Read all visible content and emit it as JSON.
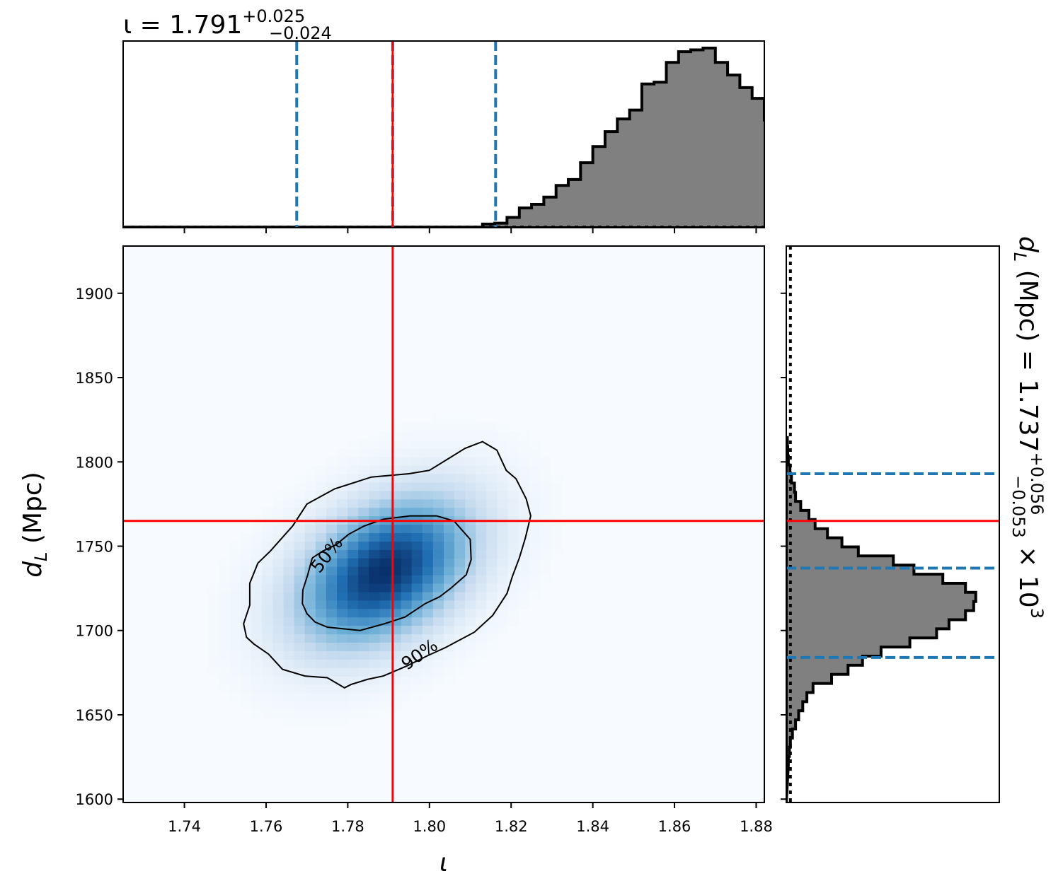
{
  "chart_data": [
    {
      "panel": "top-marginal",
      "type": "histogram",
      "title": {
        "prefix": "ι = ",
        "value": "1.791",
        "plus": "+0.025",
        "minus": "−0.024"
      },
      "xlim": [
        1.725,
        1.882
      ],
      "bins": {
        "start": 1.726,
        "width": 0.003
      },
      "counts": [
        0.003,
        0.003,
        0.003,
        0.003,
        0.003,
        0.003,
        0.003,
        0.003,
        0.003,
        0.003,
        0.003,
        0.003,
        0.003,
        0.003,
        0.003,
        0.003,
        0.003,
        0.003,
        0.003,
        0.003,
        0.003,
        0.003,
        0.003,
        0.003,
        0.003,
        0.003,
        0.003,
        0.003,
        0.003,
        0.02,
        0.025,
        0.057,
        0.11,
        0.13,
        0.17,
        0.235,
        0.268,
        0.362,
        0.452,
        0.535,
        0.605,
        0.655,
        0.8,
        0.81,
        0.92,
        0.98,
        0.99,
        1.0,
        0.92,
        0.85,
        0.78,
        0.72,
        0.6,
        0.54,
        0.42,
        0.27,
        0.2,
        0.12,
        0.085,
        0.06,
        0.055,
        0.035,
        0.02,
        0.018,
        0.01,
        0.008,
        0.005,
        0.004,
        0.003,
        0.003,
        0.003,
        0.003,
        0.003,
        0.003,
        0.003,
        0.003,
        0.003,
        0.003,
        0.003,
        0.003,
        0.003,
        0.003,
        0.003,
        0.003,
        0.003,
        0.003,
        0.003,
        0.003,
        0.003,
        0.003,
        0.003,
        0.003,
        0.003,
        0.003,
        0.003,
        0.003,
        0.003,
        0.003,
        0.003,
        0.003,
        0.003,
        0.003,
        0.003,
        0.003,
        0.003,
        0.003,
        0.003,
        0.003,
        0.003,
        0.003,
        0.003,
        0.003,
        0.003
      ],
      "quantiles_dashed": [
        1.7675,
        1.791,
        1.8162
      ],
      "truth": 1.791,
      "prior_dotted": 0.003
    },
    {
      "panel": "joint",
      "type": "heatmap",
      "xlabel": "ι",
      "ylabel": "d_L (Mpc)",
      "ylabel_main": "d",
      "ylabel_sub": "L",
      "ylabel_rest": " (Mpc)",
      "xlim": [
        1.725,
        1.882
      ],
      "ylim": [
        1598,
        1928
      ],
      "xticks": [
        "1.74",
        "1.76",
        "1.78",
        "1.80",
        "1.82",
        "1.84",
        "1.86",
        "1.88"
      ],
      "yticks": [
        "1600",
        "1650",
        "1700",
        "1750",
        "1800",
        "1850",
        "1900"
      ],
      "density": {
        "mean_x": 1.789,
        "mean_y": 1735,
        "sigma_x": 0.0145,
        "sigma_y": 30,
        "rho": 0.4,
        "colormap": [
          "#f7fbff",
          "#c6dbef",
          "#6baed6",
          "#2171b5",
          "#08306b"
        ]
      },
      "contours": [
        {
          "label": "50%",
          "points": [
            [
              1.7713,
              1.743
            ],
            [
              1.7738,
              1.747
            ],
            [
              1.7772,
              1.751
            ],
            [
              1.7802,
              1.757
            ],
            [
              1.784,
              1.762
            ],
            [
              1.7887,
              1.766
            ],
            [
              1.7953,
              1.768
            ],
            [
              1.8017,
              1.768
            ],
            [
              1.806,
              1.765
            ],
            [
              1.81,
              1.754
            ],
            [
              1.8102,
              1.742
            ],
            [
              1.809,
              1.733
            ],
            [
              1.8052,
              1.725
            ],
            [
              1.8025,
              1.72
            ],
            [
              1.799,
              1.716
            ],
            [
              1.794,
              1.708
            ],
            [
              1.789,
              1.704
            ],
            [
              1.783,
              1.7
            ],
            [
              1.779,
              1.701
            ],
            [
              1.775,
              1.702
            ],
            [
              1.772,
              1.705
            ],
            [
              1.77,
              1.71
            ],
            [
              1.7689,
              1.716
            ],
            [
              1.769,
              1.724
            ],
            [
              1.7702,
              1.733
            ],
            [
              1.7713,
              1.743
            ]
          ]
        },
        {
          "label": "90%",
          "points": [
            [
              1.7665,
              1.762
            ],
            [
              1.77,
              1.775
            ],
            [
              1.7768,
              1.784
            ],
            [
              1.7858,
              1.791
            ],
            [
              1.795,
              1.793
            ],
            [
              1.8,
              1.795
            ],
            [
              1.8087,
              1.808
            ],
            [
              1.813,
              1.812
            ],
            [
              1.8165,
              1.807
            ],
            [
              1.8188,
              1.795
            ],
            [
              1.8212,
              1.79
            ],
            [
              1.8237,
              1.778
            ],
            [
              1.8248,
              1.768
            ],
            [
              1.8235,
              1.755
            ],
            [
              1.822,
              1.743
            ],
            [
              1.8203,
              1.732
            ],
            [
              1.819,
              1.722
            ],
            [
              1.8155,
              1.709
            ],
            [
              1.811,
              1.699
            ],
            [
              1.804,
              1.69
            ],
            [
              1.7995,
              1.685
            ],
            [
              1.7945,
              1.679
            ],
            [
              1.7887,
              1.673
            ],
            [
              1.7848,
              1.671
            ],
            [
              1.7808,
              1.668
            ],
            [
              1.7792,
              1.666
            ],
            [
              1.775,
              1.672
            ],
            [
              1.7695,
              1.673
            ],
            [
              1.764,
              1.677
            ],
            [
              1.7606,
              1.686
            ],
            [
              1.757,
              1.692
            ],
            [
              1.7552,
              1.696
            ],
            [
              1.7545,
              1.704
            ],
            [
              1.756,
              1.715
            ],
            [
              1.756,
              1.728
            ],
            [
              1.758,
              1.74
            ],
            [
              1.761,
              1.747
            ],
            [
              1.7665,
              1.762
            ]
          ]
        }
      ],
      "truth": {
        "x": 1.791,
        "y": 1765
      }
    },
    {
      "panel": "right-marginal",
      "type": "histogram",
      "orientation": "horizontal",
      "title": {
        "prefix": "d_L (Mpc) = ",
        "label_main": "d",
        "label_sub": "L",
        "label_rest": " (Mpc) = 1.737",
        "plus": "+0.056",
        "minus": "−0.053",
        "suffix": " × 10",
        "exponent": "3"
      },
      "ylim": [
        1598,
        1928
      ],
      "bins": {
        "start": 1620,
        "width": 5.4
      },
      "counts": [
        0.01,
        0.015,
        0.02,
        0.03,
        0.045,
        0.06,
        0.08,
        0.1,
        0.13,
        0.22,
        0.3,
        0.37,
        0.46,
        0.6,
        0.73,
        0.79,
        0.87,
        0.91,
        0.92,
        0.87,
        0.76,
        0.62,
        0.52,
        0.35,
        0.27,
        0.2,
        0.14,
        0.11,
        0.07,
        0.045,
        0.04,
        0.025,
        0.018,
        0.01,
        0.007,
        0.005
      ],
      "quantiles_dashed": [
        1684,
        1737,
        1793
      ],
      "truth": 1765,
      "prior_dotted": 0.02
    }
  ]
}
